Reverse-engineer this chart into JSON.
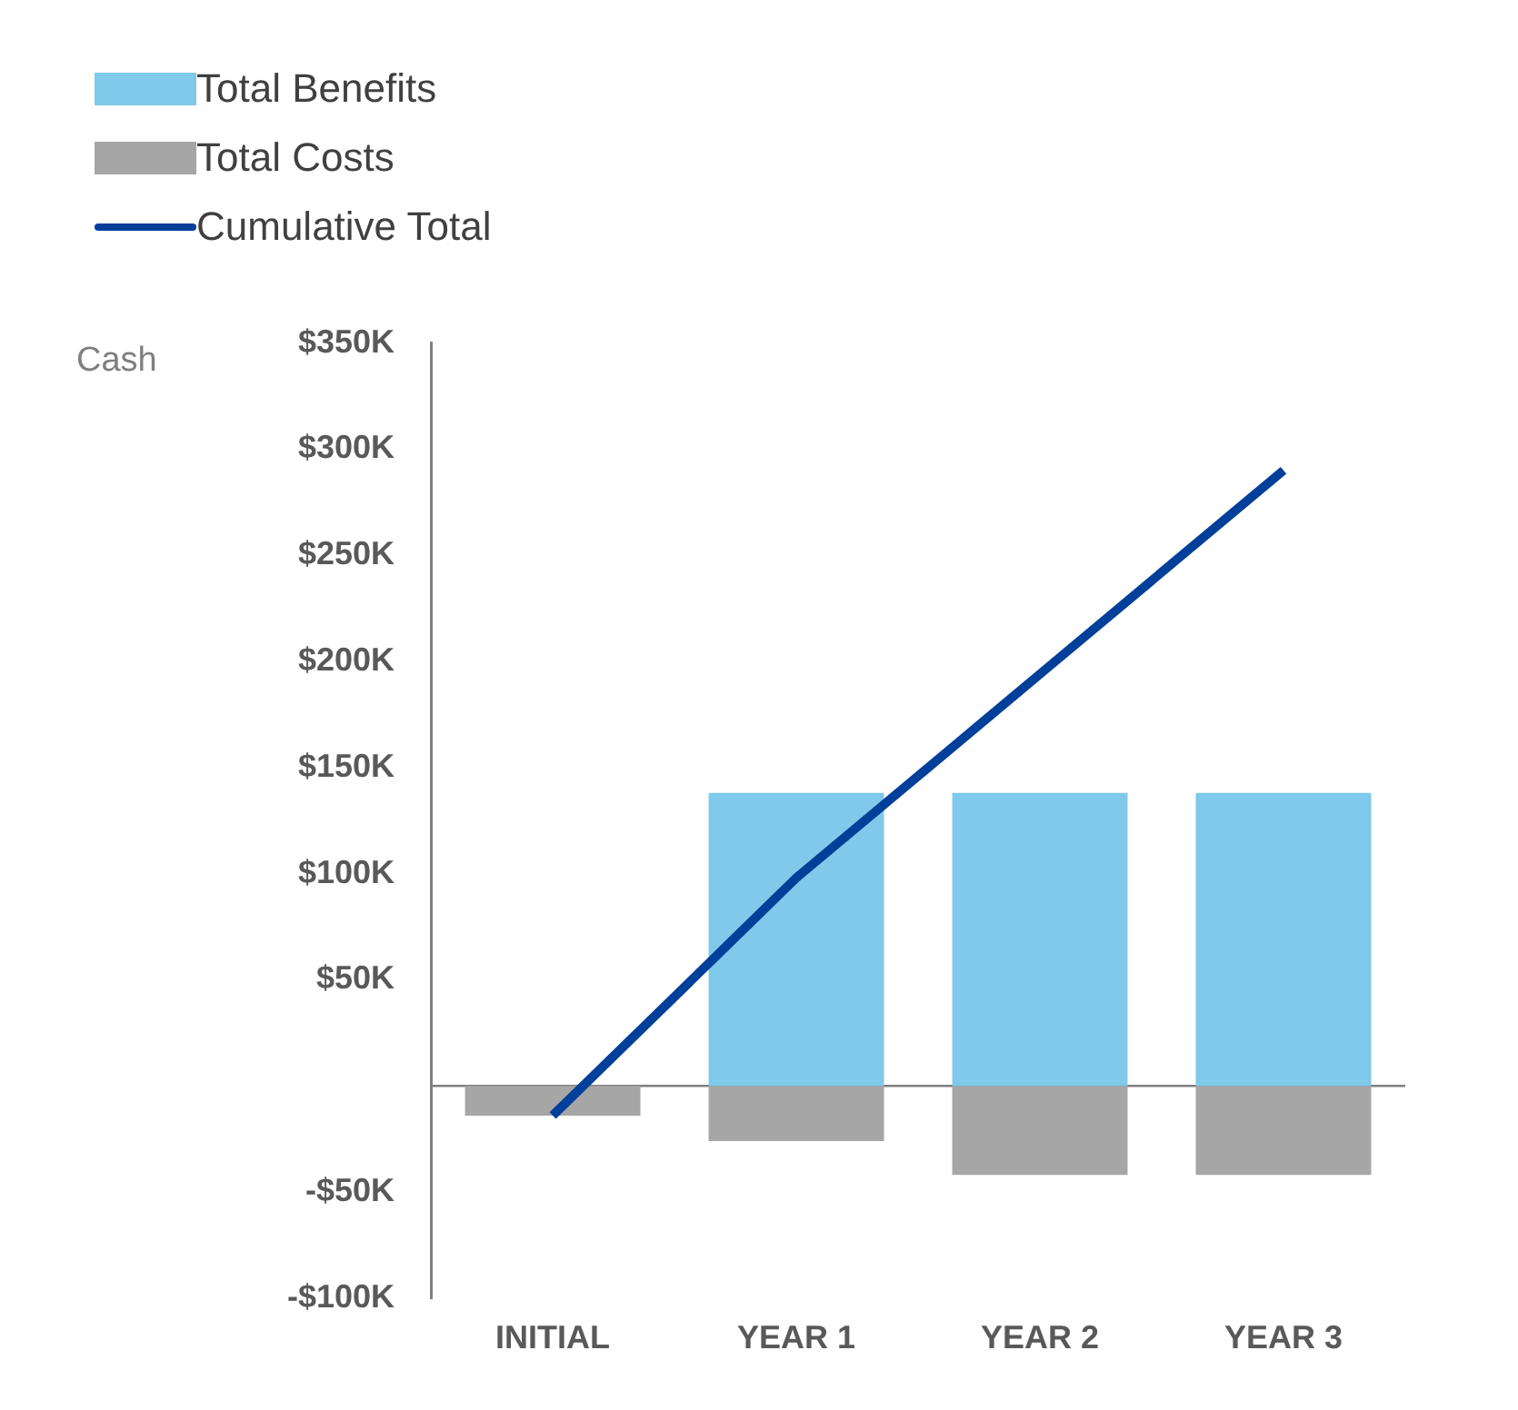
{
  "chart_data": {
    "type": "bar",
    "ylabel": "Cash",
    "categories": [
      "INITIAL",
      "YEAR 1",
      "YEAR 2",
      "YEAR 3"
    ],
    "stacked": true,
    "series": [
      {
        "name": "Total Benefits",
        "color": "#7fc9ea",
        "values": [
          0,
          138,
          138,
          138
        ]
      },
      {
        "name": "Total Costs",
        "color": "#a6a6a6",
        "values": [
          -14,
          -26,
          -42,
          -42
        ]
      },
      {
        "name": "Cumulative Total",
        "type": "line",
        "color": "#003f9a",
        "values": [
          -14,
          98,
          194,
          290
        ]
      }
    ],
    "ylim": [
      -100,
      350
    ],
    "yticks": [
      {
        "value": -100,
        "label": "-$100K"
      },
      {
        "value": -50,
        "label": "-$50K"
      },
      {
        "value": 50,
        "label": "$50K"
      },
      {
        "value": 100,
        "label": "$100K"
      },
      {
        "value": 150,
        "label": "$150K"
      },
      {
        "value": 200,
        "label": "$200K"
      },
      {
        "value": 250,
        "label": "$250K"
      },
      {
        "value": 300,
        "label": "$300K"
      },
      {
        "value": 350,
        "label": "$350K"
      }
    ],
    "grid": false,
    "legend": "top left",
    "marker": "none"
  }
}
